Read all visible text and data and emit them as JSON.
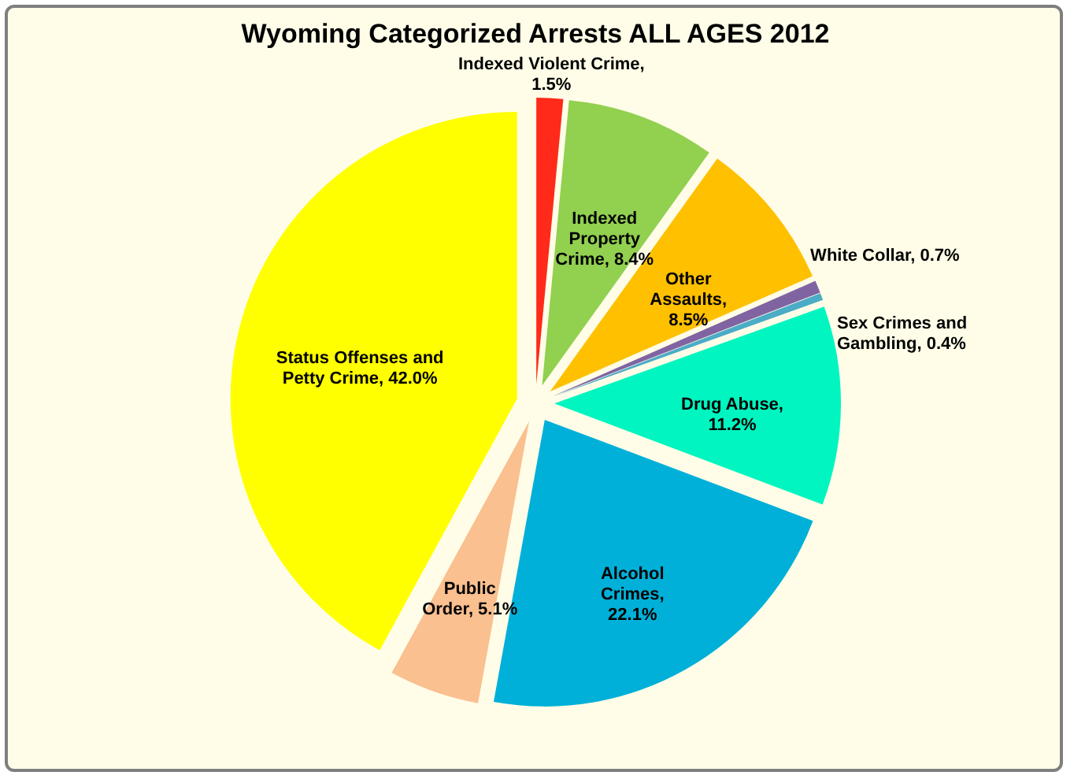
{
  "chart_data": {
    "type": "pie",
    "title": "Wyoming Categorized Arrests ALL AGES 2012",
    "categories": [
      "Indexed Violent Crime, 1.5%",
      "Indexed Property Crime, 8.4%",
      "Other Assaults, 8.5%",
      "White Collar, 0.7%",
      "Sex Crimes and Gambling, 0.4%",
      "Drug Abuse, 11.2%",
      "Alcohol Crimes, 22.1%",
      "Public Order, 5.1%",
      "Status Offenses and Petty Crime, 42.0%"
    ],
    "values": [
      1.5,
      8.4,
      8.5,
      0.7,
      0.4,
      11.2,
      22.1,
      5.1,
      42.0
    ],
    "colors": [
      "#ff2a1a",
      "#92d050",
      "#ffc000",
      "#8064a2",
      "#4bacc6",
      "#00f5c0",
      "#00b0d8",
      "#fac090",
      "#ffff00"
    ],
    "legend": false
  }
}
